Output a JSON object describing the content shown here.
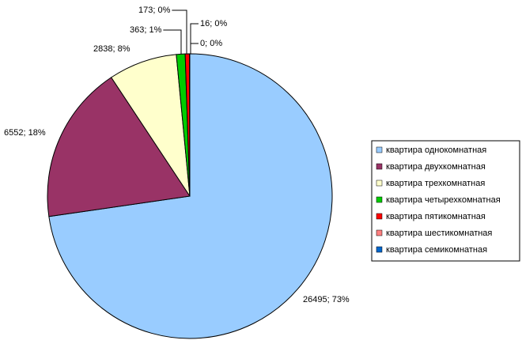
{
  "chart_data": {
    "type": "pie",
    "categories": [
      "квартира однокомнатная",
      "квартира двухкомнатная",
      "квартира трехкомнатная",
      "квартира четырехкомнатная",
      "квартира пятикомнатная",
      "квартира шестикомнатная",
      "квартира семикомнатная"
    ],
    "values": [
      26495,
      6552,
      2838,
      363,
      173,
      16,
      0
    ],
    "value_labels": [
      "26495; 73%",
      "6552; 18%",
      "2838; 8%",
      "363; 1%",
      "173; 0%",
      "16; 0%",
      "0; 0%"
    ],
    "colors": [
      "#99ccff",
      "#993366",
      "#ffffcc",
      "#00cc00",
      "#ff0000",
      "#ff8080",
      "#0066cc"
    ],
    "legend": "right"
  }
}
